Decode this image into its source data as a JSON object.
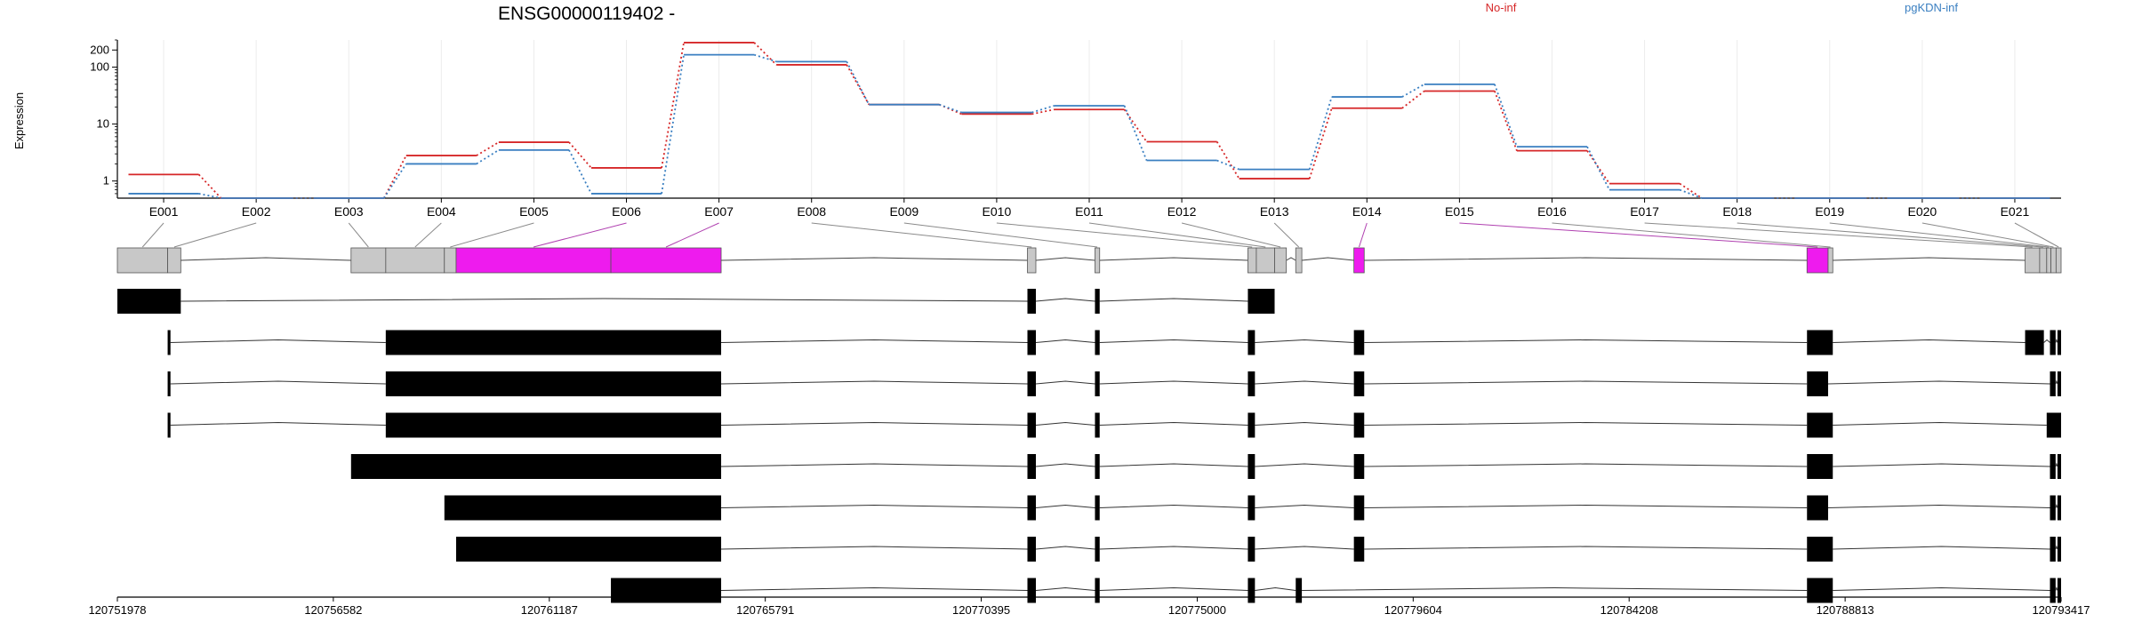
{
  "chart_data": {
    "type": "line",
    "title": "ENSG00000119402 -",
    "ylabel": "Expression",
    "yscale": "log",
    "yticks": [
      {
        "value": 1,
        "label": "1"
      },
      {
        "value": 10,
        "label": "10"
      },
      {
        "value": 100,
        "label": "100"
      },
      {
        "value": 200,
        "label": "200"
      }
    ],
    "ylim": [
      0.5,
      300
    ],
    "categories": [
      "E001",
      "E002",
      "E003",
      "E004",
      "E005",
      "E006",
      "E007",
      "E008",
      "E009",
      "E010",
      "E011",
      "E012",
      "E013",
      "E014",
      "E015",
      "E016",
      "E017",
      "E018",
      "E019",
      "E020",
      "E021"
    ],
    "series": [
      {
        "name": "No-inf",
        "color": "#d62728",
        "values": [
          1.3,
          0.5,
          0.5,
          2.8,
          4.8,
          1.7,
          270,
          110,
          22,
          15,
          18,
          4.9,
          1.1,
          19,
          38,
          3.4,
          0.9,
          0.5,
          0.5,
          0.5,
          0.5
        ]
      },
      {
        "name": "pgKDN-inf",
        "color": "#3a7fc1",
        "values": [
          0.6,
          0.5,
          0.5,
          2.0,
          3.5,
          0.6,
          165,
          125,
          22,
          16,
          21,
          2.3,
          1.6,
          30,
          50,
          4.0,
          0.7,
          0.5,
          0.5,
          0.5,
          0.5
        ]
      }
    ],
    "gene_model": {
      "start": 120751978,
      "end": 120793417,
      "axis_ticks": [
        "120751978",
        "120756582",
        "120761187",
        "120765791",
        "120770395",
        "120775000",
        "120779604",
        "120784208",
        "120788813",
        "120793417"
      ],
      "highlight_color": "#ee1bee",
      "exons": [
        {
          "id": "E001",
          "start": 120751978,
          "end": 120753050,
          "highlight": false
        },
        {
          "id": "E002",
          "start": 120753050,
          "end": 120753330,
          "highlight": false
        },
        {
          "id": "E003",
          "start": 120756960,
          "end": 120757700,
          "highlight": false
        },
        {
          "id": "E004",
          "start": 120757700,
          "end": 120758950,
          "highlight": false
        },
        {
          "id": "E005",
          "start": 120758950,
          "end": 120759200,
          "highlight": false
        },
        {
          "id": "E006",
          "start": 120759200,
          "end": 120762500,
          "highlight": true
        },
        {
          "id": "E007",
          "start": 120762500,
          "end": 120764850,
          "highlight": true
        },
        {
          "id": "E008",
          "start": 120771380,
          "end": 120771560,
          "highlight": false
        },
        {
          "id": "E009",
          "start": 120772820,
          "end": 120772920,
          "highlight": false
        },
        {
          "id": "E010",
          "start": 120776080,
          "end": 120776260,
          "highlight": false
        },
        {
          "id": "E011",
          "start": 120776260,
          "end": 120776650,
          "highlight": false
        },
        {
          "id": "E012",
          "start": 120776650,
          "end": 120776900,
          "highlight": false
        },
        {
          "id": "E013",
          "start": 120777100,
          "end": 120777230,
          "highlight": false
        },
        {
          "id": "E014",
          "start": 120778340,
          "end": 120778560,
          "highlight": true
        },
        {
          "id": "E015",
          "start": 120788000,
          "end": 120788450,
          "highlight": true
        },
        {
          "id": "E016",
          "start": 120788450,
          "end": 120788550,
          "highlight": false
        },
        {
          "id": "E017",
          "start": 120792650,
          "end": 120792960,
          "highlight": false
        },
        {
          "id": "E018",
          "start": 120792960,
          "end": 120793110,
          "highlight": false
        },
        {
          "id": "E019",
          "start": 120793110,
          "end": 120793200,
          "highlight": false
        },
        {
          "id": "E020",
          "start": 120793200,
          "end": 120793310,
          "highlight": false
        },
        {
          "id": "E021",
          "start": 120793310,
          "end": 120793417,
          "highlight": false
        }
      ],
      "transcripts": [
        [
          [
            120751978,
            120753330
          ],
          [
            120771380,
            120771560
          ],
          [
            120772820,
            120772920
          ],
          [
            120776080,
            120776650
          ]
        ],
        [
          [
            120753050,
            120753110
          ],
          [
            120757700,
            120764850
          ],
          [
            120771380,
            120771560
          ],
          [
            120772820,
            120772920
          ],
          [
            120776080,
            120776230
          ],
          [
            120778340,
            120778560
          ],
          [
            120788000,
            120788550
          ],
          [
            120792650,
            120793050
          ],
          [
            120793180,
            120793300
          ],
          [
            120793340,
            120793417
          ]
        ],
        [
          [
            120753050,
            120753110
          ],
          [
            120757700,
            120764850
          ],
          [
            120771380,
            120771560
          ],
          [
            120772820,
            120772920
          ],
          [
            120776080,
            120776230
          ],
          [
            120778340,
            120778560
          ],
          [
            120788000,
            120788450
          ],
          [
            120793180,
            120793300
          ],
          [
            120793340,
            120793417
          ]
        ],
        [
          [
            120753050,
            120753110
          ],
          [
            120757700,
            120764850
          ],
          [
            120771380,
            120771560
          ],
          [
            120772820,
            120772920
          ],
          [
            120776080,
            120776230
          ],
          [
            120778340,
            120778560
          ],
          [
            120788000,
            120788550
          ],
          [
            120793110,
            120793417
          ]
        ],
        [
          [
            120756960,
            120764850
          ],
          [
            120771380,
            120771560
          ],
          [
            120772820,
            120772920
          ],
          [
            120776080,
            120776230
          ],
          [
            120778340,
            120778560
          ],
          [
            120788000,
            120788550
          ],
          [
            120793180,
            120793300
          ],
          [
            120793340,
            120793417
          ]
        ],
        [
          [
            120758950,
            120764850
          ],
          [
            120771380,
            120771560
          ],
          [
            120772820,
            120772920
          ],
          [
            120776080,
            120776230
          ],
          [
            120778340,
            120778560
          ],
          [
            120788000,
            120788450
          ],
          [
            120793180,
            120793300
          ],
          [
            120793340,
            120793417
          ]
        ],
        [
          [
            120759200,
            120764850
          ],
          [
            120771380,
            120771560
          ],
          [
            120772820,
            120772920
          ],
          [
            120776080,
            120776230
          ],
          [
            120778340,
            120778560
          ],
          [
            120788000,
            120788550
          ],
          [
            120793180,
            120793300
          ],
          [
            120793340,
            120793417
          ]
        ],
        [
          [
            120762500,
            120764850
          ],
          [
            120771380,
            120771560
          ],
          [
            120772820,
            120772920
          ],
          [
            120776080,
            120776230
          ],
          [
            120777100,
            120777230
          ],
          [
            120788000,
            120788550
          ],
          [
            120793180,
            120793300
          ],
          [
            120793340,
            120793417
          ]
        ]
      ]
    }
  }
}
